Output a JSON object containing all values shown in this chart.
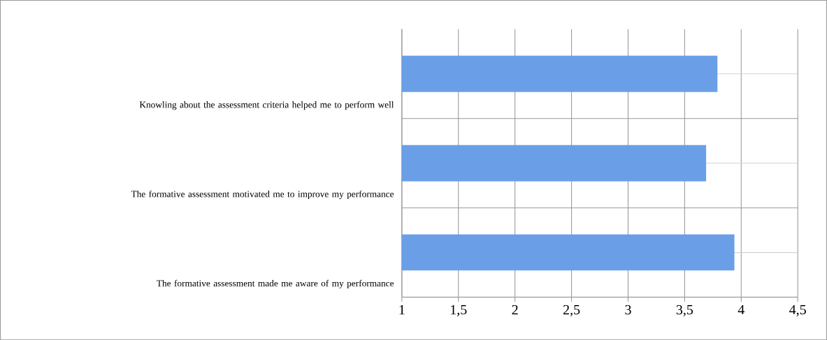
{
  "chart_data": {
    "type": "bar",
    "orientation": "horizontal",
    "categories": [
      "Knowling about the assessment criteria helped me to perform well",
      "The formative assessment motivated me to improve my performance",
      "The formative assessment made me aware of my performance"
    ],
    "values": [
      3.79,
      3.69,
      3.94
    ],
    "color": "#6a9fe8",
    "xlim": [
      1,
      4.5
    ],
    "xticks": [
      1,
      {
        "value": 1.5,
        "label": "1,5"
      },
      2,
      {
        "value": 2.5,
        "label": "2,5"
      },
      3,
      {
        "value": 3.5,
        "label": "3,5"
      },
      4,
      {
        "value": 4.5,
        "label": "4,5"
      }
    ],
    "grid": true
  }
}
